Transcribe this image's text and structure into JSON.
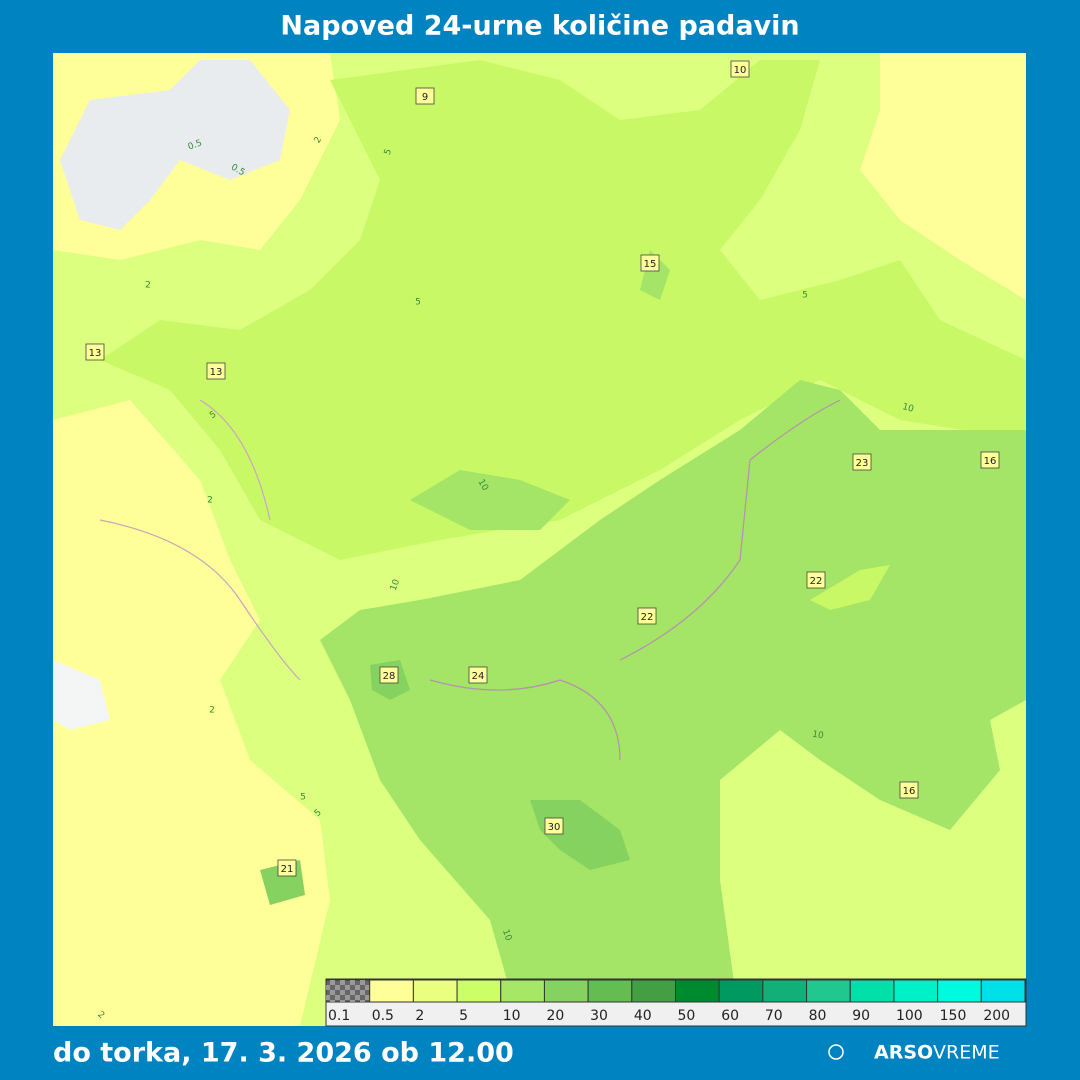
{
  "header": {
    "title": "Napoved 24-urne količine padavin"
  },
  "map": {
    "labels": [
      10,
      9,
      15,
      13,
      13,
      23,
      16,
      22,
      22,
      28,
      24,
      30,
      16,
      21
    ],
    "contour_labels": [
      "0.5",
      "0.5",
      "2",
      "5",
      "2",
      "5",
      "5",
      "10",
      "5",
      "2",
      "10",
      "10",
      "2",
      "10",
      "5",
      "5",
      "10",
      "2"
    ]
  },
  "legend": {
    "labels": [
      "0.1",
      "0.5",
      "2",
      "5",
      "10",
      "20",
      "30",
      "40",
      "50",
      "60",
      "70",
      "80",
      "90",
      "100",
      "150",
      "200"
    ],
    "colors": [
      "#666666",
      "#ffff99",
      "#eaff80",
      "#ccff66",
      "#a6e866",
      "#86d260",
      "#63bd50",
      "#449e44",
      "#008a30",
      "#009a60",
      "#10b078",
      "#20c890",
      "#00e0a8",
      "#00f0c8",
      "#00fae0",
      "#00e0e8"
    ]
  },
  "footer": {
    "date": "do torka, 17. 3. 2026 ob 12.00",
    "brand": "ARSO",
    "brand_sub": "VREME"
  }
}
